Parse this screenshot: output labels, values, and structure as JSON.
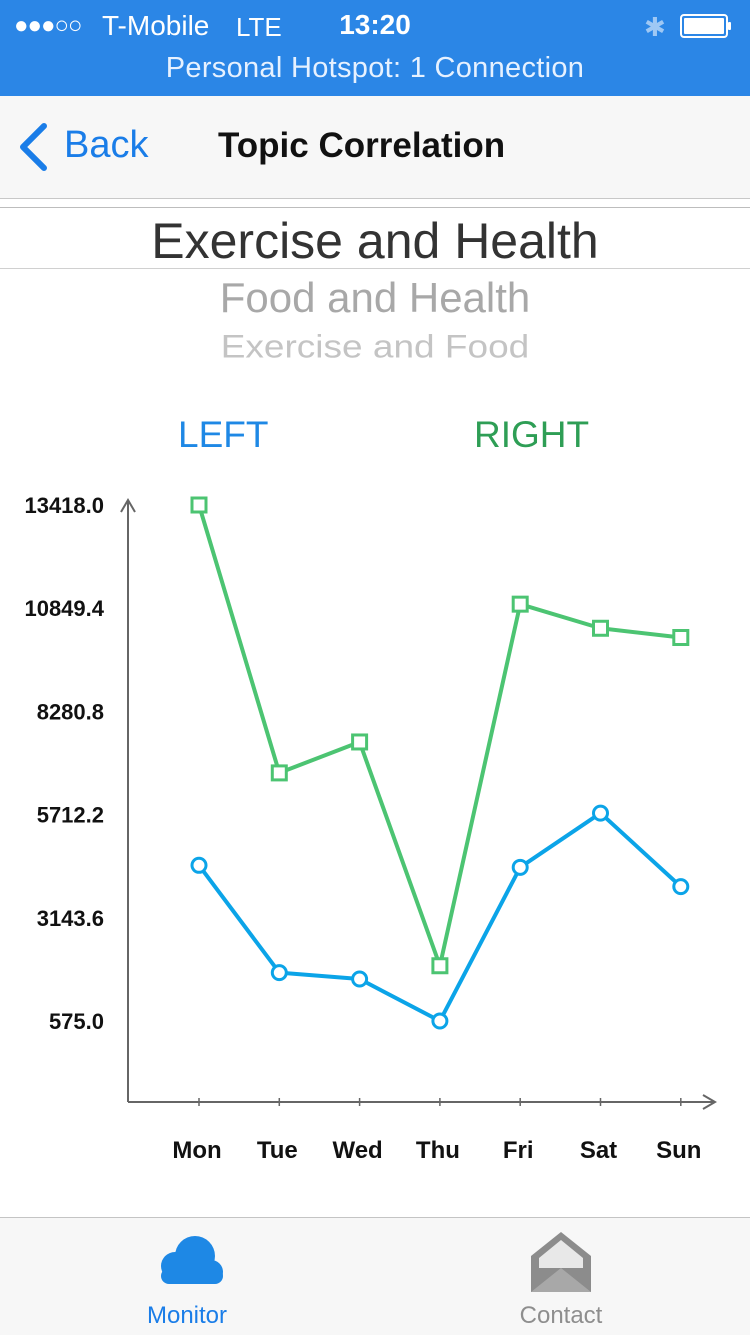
{
  "status_bar": {
    "signal": "●●●○○",
    "carrier": "T-Mobile",
    "network": "LTE",
    "time": "13:20",
    "hotspot": "Personal Hotspot: 1 Connection",
    "bluetooth_icon": "bluetooth-icon",
    "battery_icon": "battery-icon"
  },
  "nav": {
    "back_label": "Back",
    "back_icon": "chevron-left-icon",
    "title": "Topic Correlation"
  },
  "topics": [
    "Exercise and Health",
    "Food and Health",
    "Exercise and Food"
  ],
  "legend": {
    "left": "LEFT",
    "right": "RIGHT"
  },
  "chart_data": {
    "type": "line",
    "categories": [
      "Mon",
      "Tue",
      "Wed",
      "Thu",
      "Fri",
      "Sat",
      "Sun"
    ],
    "y_ticks": [
      "13418.0",
      "10849.4",
      "8280.8",
      "5712.2",
      "3143.6",
      "575.0"
    ],
    "ylim": [
      -1600,
      13418.0
    ],
    "grid": false,
    "series": [
      {
        "name": "RIGHT",
        "color": "#4cc472",
        "marker": "square",
        "values": [
          13418.0,
          6750,
          7520,
          1950,
          10950,
          10350,
          10120
        ]
      },
      {
        "name": "LEFT",
        "color": "#0ba4e8",
        "marker": "circle",
        "values": [
          4450,
          1780,
          1620,
          575.0,
          4400,
          5750,
          3920
        ]
      }
    ]
  },
  "tabs": [
    {
      "label": "Monitor",
      "icon": "cloud-icon",
      "active": true
    },
    {
      "label": "Contact",
      "icon": "envelope-icon",
      "active": false
    }
  ],
  "colors": {
    "status_bar": "#2b86e6",
    "accent": "#1a7de8",
    "series_right": "#4cc472",
    "series_left": "#0ba4e8"
  }
}
